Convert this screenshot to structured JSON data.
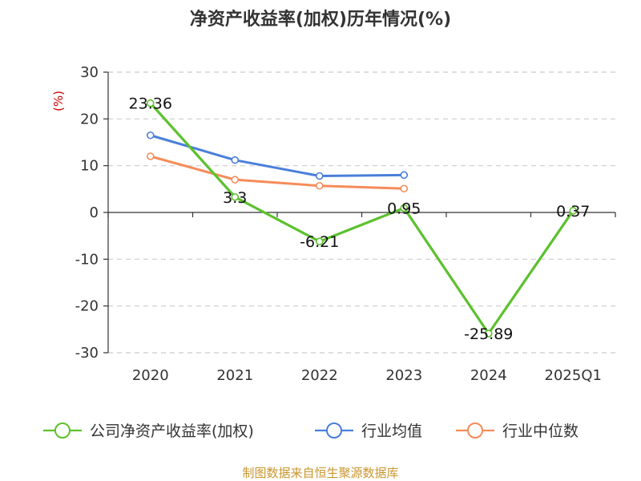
{
  "chart_data": {
    "type": "line",
    "title": "净资产收益率(加权)历年情况(%)",
    "ylabel": "(%)",
    "categories": [
      "2020",
      "2021",
      "2022",
      "2023",
      "2024",
      "2025Q1"
    ],
    "ylim": [
      -30,
      30
    ],
    "yticks": [
      30,
      20,
      10,
      0,
      -10,
      -20,
      -30
    ],
    "grid": true,
    "legend_position": "bottom",
    "series": [
      {
        "name": "公司净资产收益率(加权)",
        "color": "#5cc12e",
        "values": [
          23.36,
          3.3,
          -6.21,
          0.95,
          -25.89,
          0.37
        ],
        "labels": [
          "23.36",
          "3.3",
          "-6.21",
          "0.95",
          "-25.89",
          "0.37"
        ]
      },
      {
        "name": "行业均值",
        "color": "#4a7fd9",
        "values": [
          16.5,
          11.2,
          7.8,
          8.0,
          null,
          null
        ]
      },
      {
        "name": "行业中位数",
        "color": "#f58c5a",
        "values": [
          12.0,
          7.0,
          5.7,
          5.1,
          null,
          null
        ]
      }
    ]
  },
  "source": "制图数据来自恒生聚源数据库"
}
